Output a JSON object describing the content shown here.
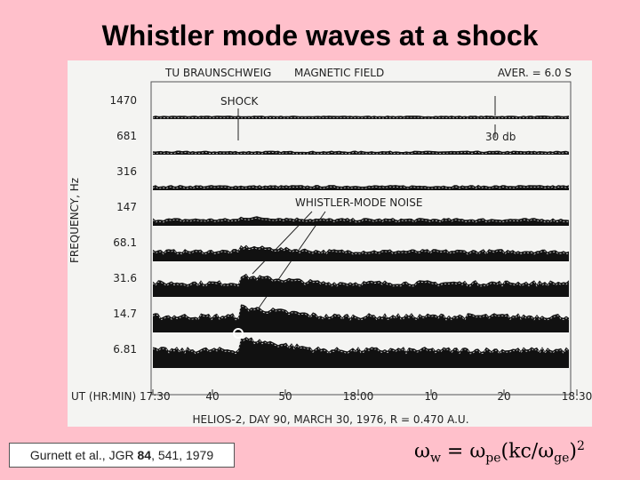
{
  "title": "Whistler mode waves at a shock",
  "figure": {
    "header_left": "TU BRAUNSCHWEIG",
    "header_mid": "MAGNETIC FIELD",
    "header_right": "AVER. = 6.0 S",
    "shock_label": "SHOCK",
    "db_label": "30 db",
    "noise_label": "WHISTLER-MODE NOISE",
    "y_axis_title": "FREQUENCY, Hz",
    "channels": [
      "1470",
      "681",
      "316",
      "147",
      "68.1",
      "31.6",
      "14.7",
      "6.81"
    ],
    "x_axis_title": "UT (HR:MIN)",
    "x_labels": [
      "17:30",
      "40",
      "50",
      "18:00",
      "10",
      "20",
      "18:30"
    ],
    "caption": "HELIOS-2, DAY 90, MARCH 30, 1976, R = 0.470 A.U."
  },
  "citation": {
    "before": "Gurnett et al., JGR ",
    "volume": "84",
    "after": ", 541, 1979"
  },
  "formula": [
    "ω",
    "w",
    " = ω",
    "pe",
    "(kc/ω",
    "ge",
    ")",
    "2"
  ]
}
